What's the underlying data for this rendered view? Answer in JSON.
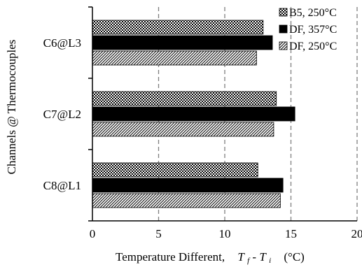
{
  "chart_data": {
    "type": "bar",
    "orientation": "horizontal",
    "categories": [
      "C8@L1",
      "C7@L2",
      "C6@L3"
    ],
    "series": [
      {
        "name": "DF, 250°C",
        "pattern": "diagonal-hatch",
        "values": [
          14.2,
          13.7,
          12.4
        ]
      },
      {
        "name": "DF, 357°C",
        "pattern": "solid-black",
        "values": [
          14.4,
          15.3,
          13.6
        ]
      },
      {
        "name": "B5, 250°C",
        "pattern": "checker",
        "values": [
          12.5,
          13.9,
          12.9
        ]
      }
    ],
    "xlim": [
      0,
      20
    ],
    "xticks": [
      "0",
      "5",
      "10",
      "15",
      "20"
    ],
    "ylabel": "Channels @ Thermocouples",
    "xlabel": {
      "prefix": "Temperature Different,",
      "formula": {
        "a": "T",
        "a_sub": "f",
        "sep": "- ",
        "b": "T",
        "b_sub": "i"
      },
      "unit": "(°C)"
    },
    "grid": "vertical-dashed",
    "legend_position": "top-right",
    "colors": {
      "bar": "#000000",
      "grid": "#7f7f7f",
      "background": "#ffffff"
    }
  }
}
